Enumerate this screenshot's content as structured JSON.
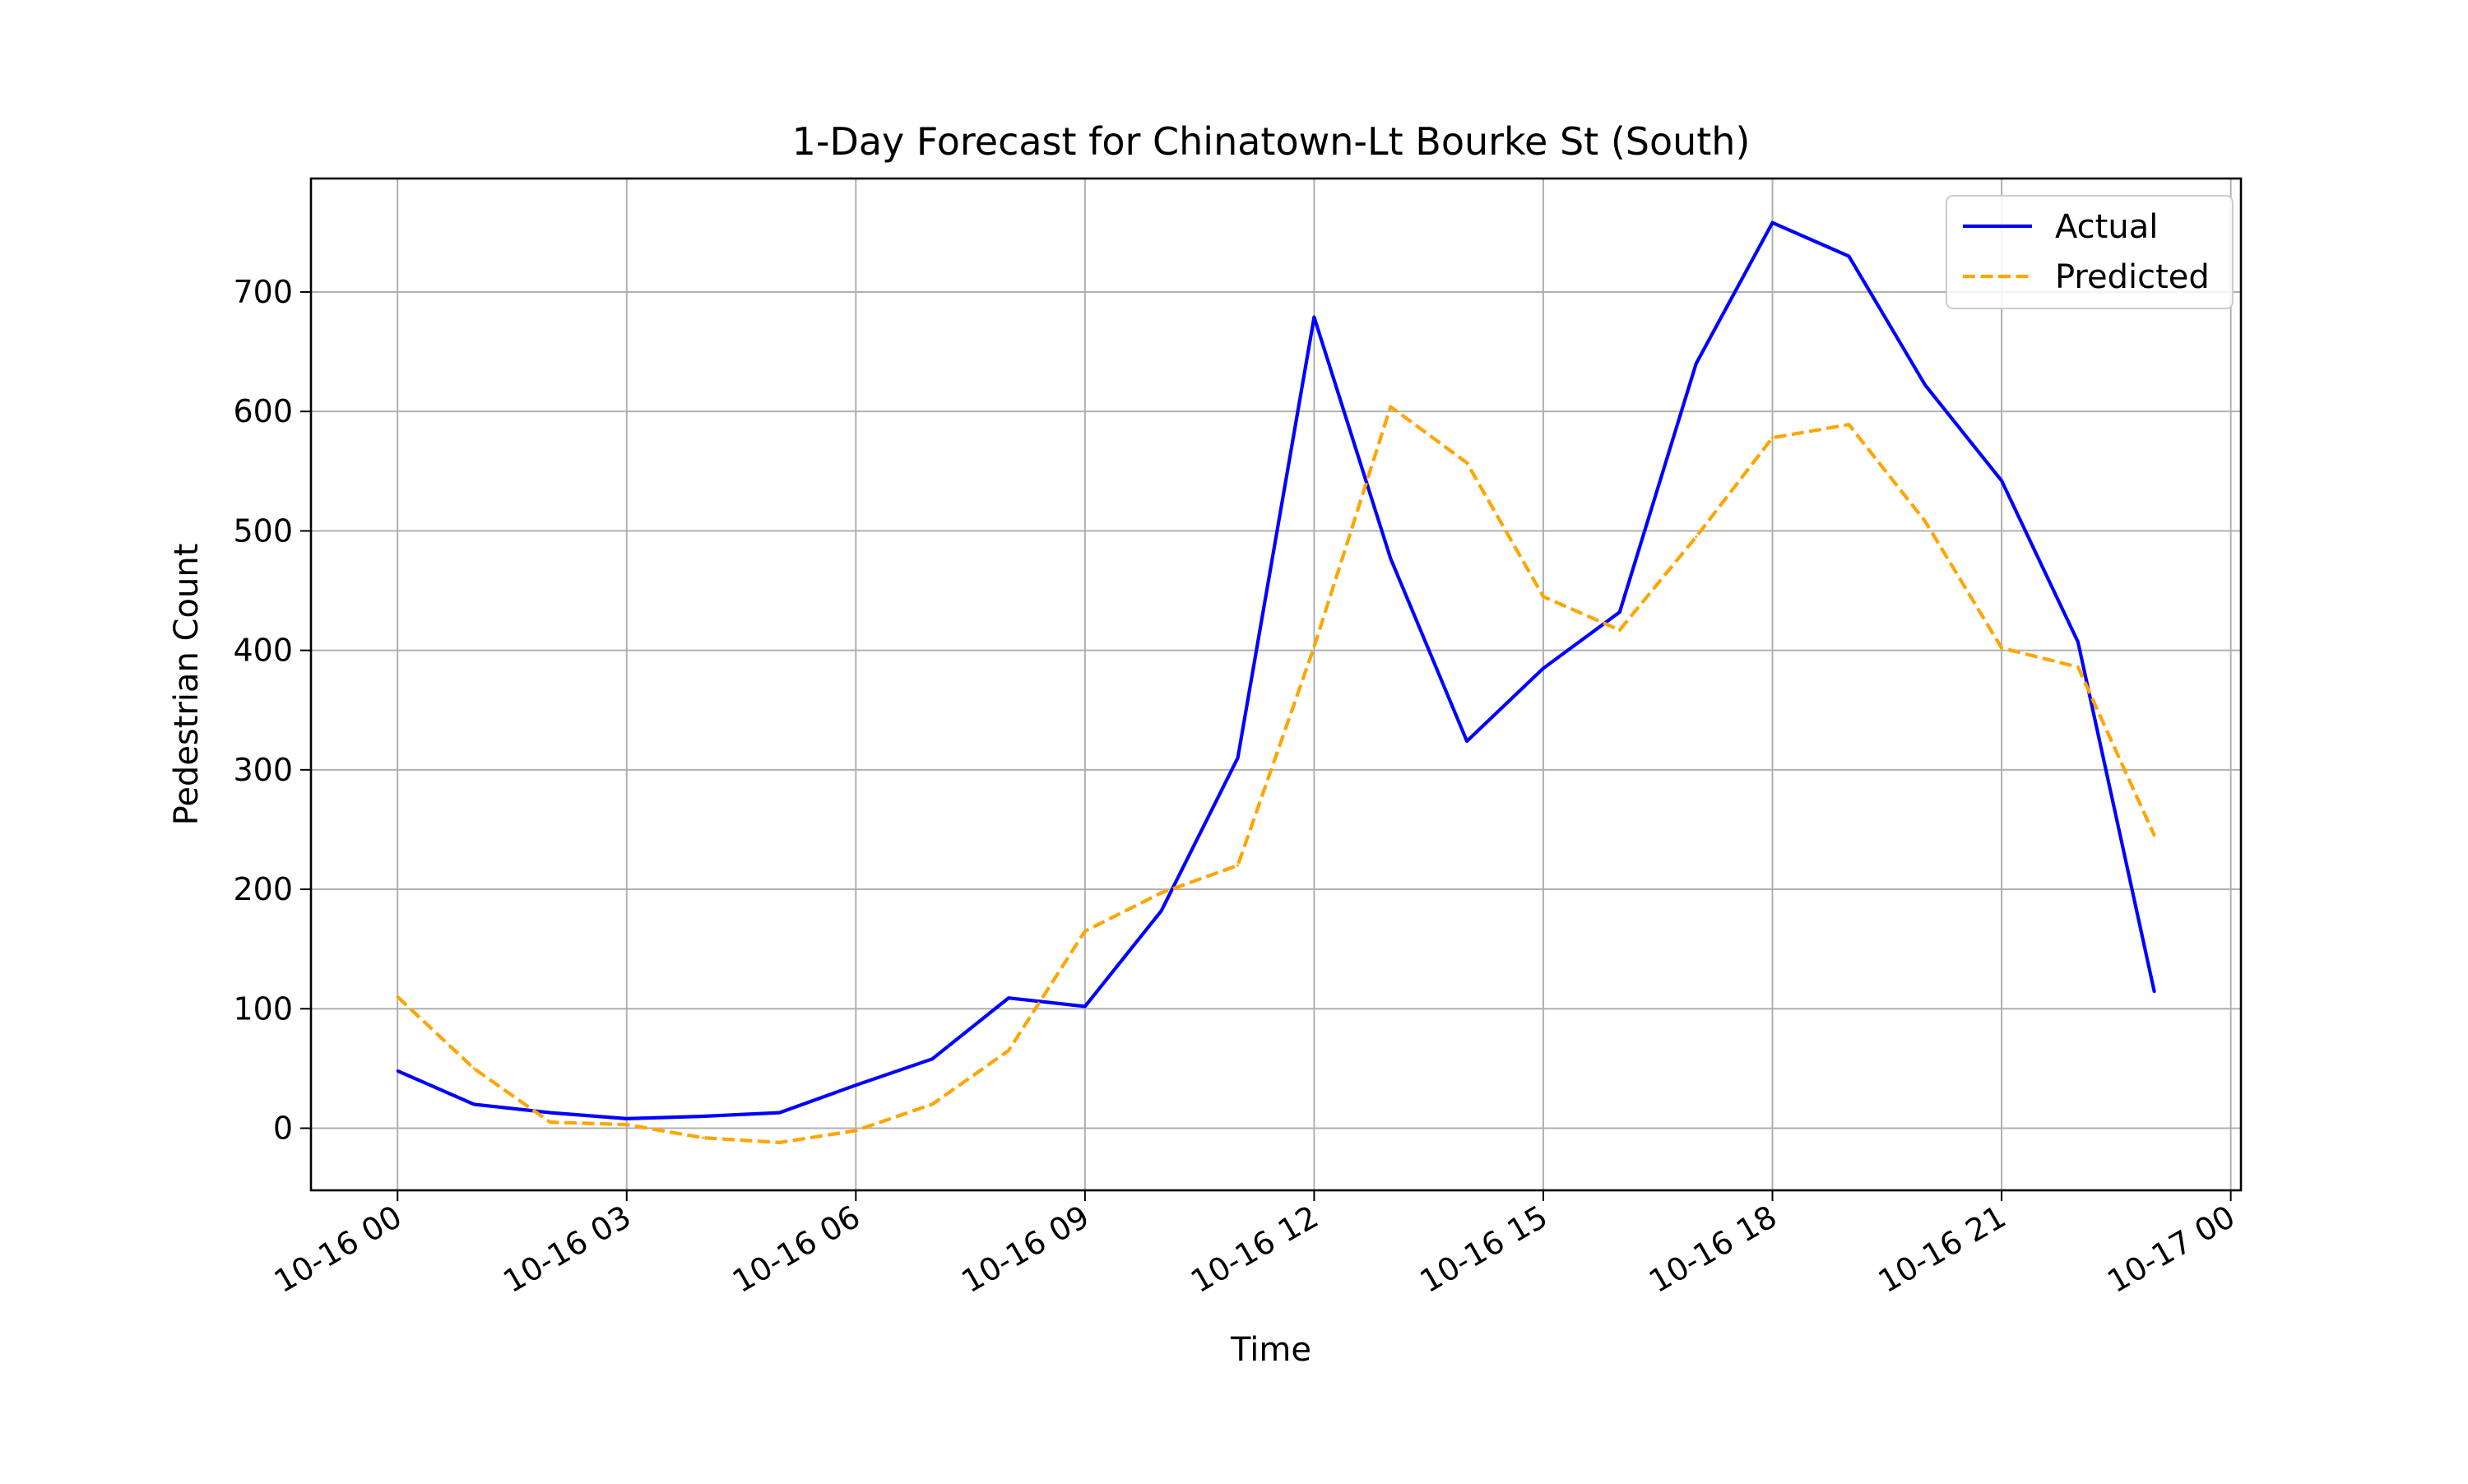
{
  "chart_data": {
    "type": "line",
    "title": "1-Day Forecast for Chinatown-Lt Bourke St (South)",
    "xlabel": "Time",
    "ylabel": "Pedestrian Count",
    "x_axis_type": "datetime",
    "xlim": [
      "2025-10-15 22:52",
      "2025-10-17 00:08"
    ],
    "ylim": [
      -52,
      795
    ],
    "x_ticks": [
      {
        "value": "2025-10-16 00:00",
        "label": "10-16 00"
      },
      {
        "value": "2025-10-16 03:00",
        "label": "10-16 03"
      },
      {
        "value": "2025-10-16 06:00",
        "label": "10-16 06"
      },
      {
        "value": "2025-10-16 09:00",
        "label": "10-16 09"
      },
      {
        "value": "2025-10-16 12:00",
        "label": "10-16 12"
      },
      {
        "value": "2025-10-16 15:00",
        "label": "10-16 15"
      },
      {
        "value": "2025-10-16 18:00",
        "label": "10-16 18"
      },
      {
        "value": "2025-10-16 21:00",
        "label": "10-16 21"
      },
      {
        "value": "2025-10-17 00:00",
        "label": "10-17 00"
      }
    ],
    "y_ticks": [
      0,
      100,
      200,
      300,
      400,
      500,
      600,
      700
    ],
    "grid": true,
    "legend_position": "top-right",
    "x": [
      "2025-10-16 00:00",
      "2025-10-16 01:00",
      "2025-10-16 02:00",
      "2025-10-16 03:00",
      "2025-10-16 04:00",
      "2025-10-16 05:00",
      "2025-10-16 06:00",
      "2025-10-16 07:00",
      "2025-10-16 08:00",
      "2025-10-16 09:00",
      "2025-10-16 10:00",
      "2025-10-16 11:00",
      "2025-10-16 12:00",
      "2025-10-16 13:00",
      "2025-10-16 14:00",
      "2025-10-16 15:00",
      "2025-10-16 16:00",
      "2025-10-16 17:00",
      "2025-10-16 18:00",
      "2025-10-16 19:00",
      "2025-10-16 20:00",
      "2025-10-16 21:00",
      "2025-10-16 22:00",
      "2025-10-16 23:00"
    ],
    "series": [
      {
        "name": "Actual",
        "color": "#0000ff",
        "style": "solid",
        "values": [
          48,
          20,
          13,
          8,
          10,
          13,
          36,
          58,
          109,
          102,
          182,
          310,
          679,
          477,
          324,
          385,
          432,
          640,
          758,
          730,
          622,
          542,
          407,
          114
        ]
      },
      {
        "name": "Predicted",
        "color": "#ffa500",
        "style": "dashed",
        "values": [
          110,
          50,
          5,
          3,
          -8,
          -12,
          -2,
          20,
          65,
          165,
          197,
          220,
          403,
          604,
          557,
          445,
          417,
          495,
          578,
          589,
          508,
          402,
          386,
          245
        ]
      }
    ]
  }
}
